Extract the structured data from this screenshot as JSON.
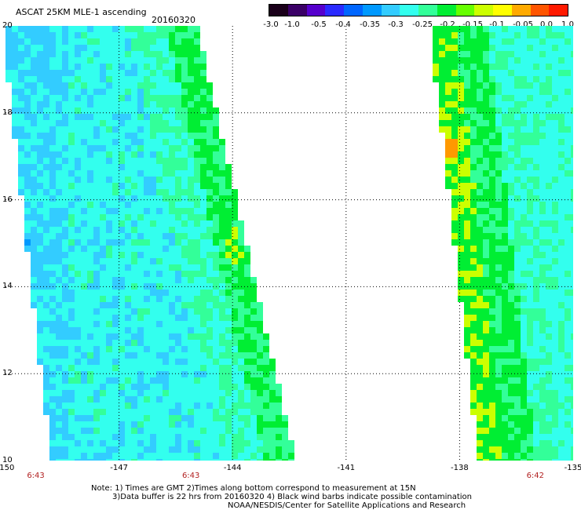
{
  "header": {
    "title": "ASCAT 25KM MLE-1 ascending",
    "date": "20160320"
  },
  "colorbar": {
    "labels": [
      "-3.0",
      "-1.0",
      "-0.5",
      "-0.4",
      "-0.35",
      "-0.3",
      "-0.25",
      "-0.2",
      "-0.15",
      "-0.1",
      "-0.05",
      "0.0",
      "1.0"
    ],
    "colors": [
      "#1a001a",
      "#3a0066",
      "#5500cc",
      "#2a2aff",
      "#0066ff",
      "#0099ff",
      "#33ccff",
      "#33ffee",
      "#33ff99",
      "#00ee33",
      "#66ff00",
      "#ccff00",
      "#ffff00",
      "#ffaa00",
      "#ff5500",
      "#ff1a00"
    ]
  },
  "axes": {
    "y_ticks": [
      "20",
      "18",
      "16",
      "14",
      "12",
      "10"
    ],
    "x_ticks": [
      "-150",
      "-147",
      "-144",
      "-141",
      "-138",
      "-135"
    ],
    "times": [
      "6:43",
      "6:43",
      "6:42"
    ]
  },
  "map": {
    "lon_range": [
      -150,
      -135
    ],
    "lat_range": [
      10,
      20
    ],
    "swaths": [
      {
        "name": "swath-west",
        "east_edge_lon": [
          -145.0,
          -142.4
        ],
        "west_edge_lon": [
          -150.0,
          -148.7
        ]
      },
      {
        "name": "swath-east",
        "west_edge_lon": [
          -138.7,
          -137.4
        ],
        "east_edge_lon": [
          -135.0,
          -135.0
        ]
      }
    ],
    "field_colors": {
      "background": "#33ffee",
      "low": "#33ccff",
      "lowest": "#0099ff",
      "high": "#33ff99",
      "higher": "#00ee33",
      "peak": "#ccff00",
      "max": "#ff9900"
    }
  },
  "footer": {
    "note_line1": "Note: 1) Times are GMT 2)Times along bottom correspond to measurement at 15N",
    "note_line2": "3)Data buffer is 22 hrs from 20160320 4) Black wind barbs indicate possible contamination",
    "note_line3": "NOAA/NESDIS/Center for Satellite Applications and Research"
  }
}
